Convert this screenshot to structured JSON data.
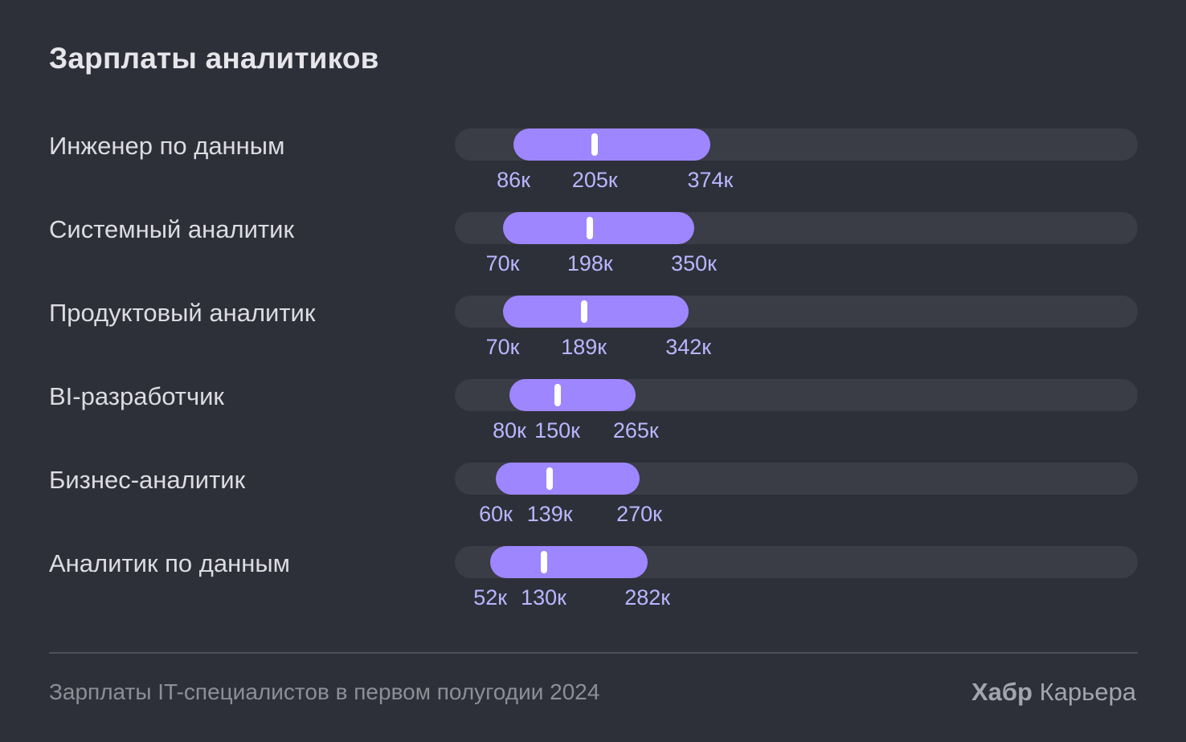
{
  "chart_data": {
    "type": "range",
    "title": "Зарплаты аналитиков",
    "xlim": [
      0,
      1000
    ],
    "unit_suffix": "к",
    "categories": [
      "Инженер по данным",
      "Системный аналитик",
      "Продуктовый аналитик",
      "BI-разработчик",
      "Бизнес-аналитик",
      "Аналитик по данным"
    ],
    "series": [
      {
        "name": "min",
        "values": [
          86,
          70,
          70,
          80,
          60,
          52
        ]
      },
      {
        "name": "median",
        "values": [
          205,
          198,
          189,
          150,
          139,
          130
        ]
      },
      {
        "name": "max",
        "values": [
          374,
          350,
          342,
          265,
          270,
          282
        ]
      }
    ],
    "tick_labels": [
      [
        "86к",
        "205к",
        "374к"
      ],
      [
        "70к",
        "198к",
        "350к"
      ],
      [
        "70к",
        "189к",
        "342к"
      ],
      [
        "80к",
        "150к",
        "265к"
      ],
      [
        "60к",
        "139к",
        "270к"
      ],
      [
        "52к",
        "130к",
        "282к"
      ]
    ],
    "colors": {
      "background": "#2e3039",
      "track": "#3a3c46",
      "range": "#9d86ff",
      "median": "#ffffff",
      "value_text": "#b9b6ff"
    }
  },
  "footer": {
    "source": "Зарплаты IT-специалистов в первом полугодии 2024",
    "brand_name": "Хабр",
    "brand_suffix": "Карьера"
  }
}
